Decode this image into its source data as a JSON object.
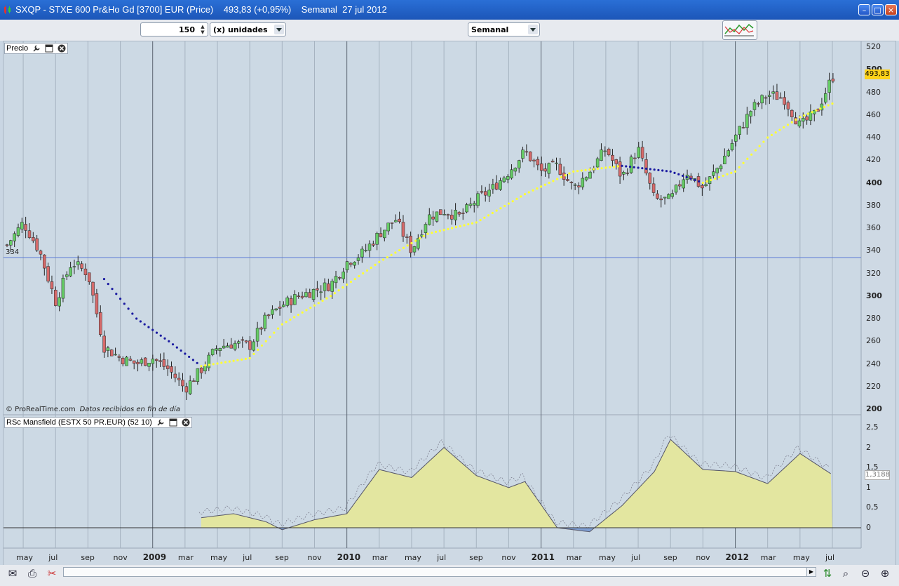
{
  "window": {
    "title": "SXQP - STXE 600 Pr&Ho Gd [3700] EUR (Price)    493,83 (+0,95%)    Semanal  27 jul 2012"
  },
  "toolbar": {
    "units_value": "150",
    "units_label": "(x) unidades",
    "period_label": "Semanal"
  },
  "price_panel": {
    "label": "Precio",
    "last_price_tag": "493,83",
    "hline_label": "334",
    "copyright": "© ProRealTime.com",
    "data_note": "Datos recibidos en fin de día",
    "y_ticks": [
      "520",
      "500",
      "480",
      "460",
      "440",
      "420",
      "400",
      "380",
      "360",
      "340",
      "320",
      "300",
      "280",
      "260",
      "240",
      "220",
      "200"
    ],
    "y_ticks_bold": [
      "500",
      "400",
      "300",
      "200"
    ]
  },
  "indicator_panel": {
    "label": "RSc Mansfield (ESTX 50 PR.EUR) (52 10)",
    "value_tag": "1,3188",
    "y_ticks": [
      "2,5",
      "2",
      "1,5",
      "1",
      "0,5",
      "0"
    ]
  },
  "x_axis": {
    "labels": [
      "may",
      "jul",
      "sep",
      "nov",
      "2009",
      "mar",
      "may",
      "jul",
      "sep",
      "nov",
      "2010",
      "mar",
      "may",
      "jul",
      "sep",
      "nov",
      "2011",
      "mar",
      "may",
      "jul",
      "sep",
      "nov",
      "2012",
      "mar",
      "may",
      "jul"
    ],
    "bold_labels": [
      "2009",
      "2010",
      "2011",
      "2012"
    ]
  },
  "colors": {
    "up_candle": "#66cc66",
    "down_candle": "#d66a6a",
    "ma_rising": "#ffff33",
    "ma_falling": "#1a1aa0",
    "indicator_fill_pos": "#e3e6a0",
    "indicator_fill_neg": "#7f9fd4",
    "price_tag": "#ffd21a"
  },
  "chart_data": {
    "type": "candlestick",
    "instrument": "SXQP - STXE 600 Pr&Ho Gd [3700] EUR (Price)",
    "timeframe": "Semanal",
    "last_date": "27 jul 2012",
    "last_value": 493.83,
    "change_pct": "+0,95%",
    "horizontal_line": 334,
    "ylim": [
      200,
      520
    ],
    "price_path": [
      {
        "date": "2008-04",
        "value": 345
      },
      {
        "date": "2008-05",
        "value": 365
      },
      {
        "date": "2008-06",
        "value": 340
      },
      {
        "date": "2008-07",
        "value": 295
      },
      {
        "date": "2008-08",
        "value": 330
      },
      {
        "date": "2008-09",
        "value": 320
      },
      {
        "date": "2008-10",
        "value": 255
      },
      {
        "date": "2008-11",
        "value": 245
      },
      {
        "date": "2008-12",
        "value": 240
      },
      {
        "date": "2009-01",
        "value": 245
      },
      {
        "date": "2009-02",
        "value": 235
      },
      {
        "date": "2009-03",
        "value": 218
      },
      {
        "date": "2009-04",
        "value": 235
      },
      {
        "date": "2009-05",
        "value": 255
      },
      {
        "date": "2009-06",
        "value": 258
      },
      {
        "date": "2009-07",
        "value": 256
      },
      {
        "date": "2009-08",
        "value": 280
      },
      {
        "date": "2009-09",
        "value": 292
      },
      {
        "date": "2009-10",
        "value": 300
      },
      {
        "date": "2009-11",
        "value": 305
      },
      {
        "date": "2009-12",
        "value": 310
      },
      {
        "date": "2010-01",
        "value": 330
      },
      {
        "date": "2010-02",
        "value": 338
      },
      {
        "date": "2010-03",
        "value": 355
      },
      {
        "date": "2010-04",
        "value": 368
      },
      {
        "date": "2010-05",
        "value": 340
      },
      {
        "date": "2010-06",
        "value": 370
      },
      {
        "date": "2010-07",
        "value": 375
      },
      {
        "date": "2010-08",
        "value": 370
      },
      {
        "date": "2010-09",
        "value": 385
      },
      {
        "date": "2010-10",
        "value": 395
      },
      {
        "date": "2010-11",
        "value": 410
      },
      {
        "date": "2010-12",
        "value": 428
      },
      {
        "date": "2011-01",
        "value": 410
      },
      {
        "date": "2011-02",
        "value": 415
      },
      {
        "date": "2011-03",
        "value": 395
      },
      {
        "date": "2011-04",
        "value": 410
      },
      {
        "date": "2011-05",
        "value": 430
      },
      {
        "date": "2011-06",
        "value": 405
      },
      {
        "date": "2011-07",
        "value": 430
      },
      {
        "date": "2011-08",
        "value": 385
      },
      {
        "date": "2011-09",
        "value": 385
      },
      {
        "date": "2011-10",
        "value": 410
      },
      {
        "date": "2011-11",
        "value": 395
      },
      {
        "date": "2011-12",
        "value": 415
      },
      {
        "date": "2012-01",
        "value": 440
      },
      {
        "date": "2012-02",
        "value": 465
      },
      {
        "date": "2012-03",
        "value": 478
      },
      {
        "date": "2012-04",
        "value": 475
      },
      {
        "date": "2012-05",
        "value": 450
      },
      {
        "date": "2012-06",
        "value": 462
      },
      {
        "date": "2012-07",
        "value": 493.83
      }
    ],
    "moving_average": [
      {
        "date": "2008-10",
        "value": 315
      },
      {
        "date": "2008-12",
        "value": 280
      },
      {
        "date": "2009-02",
        "value": 260
      },
      {
        "date": "2009-04",
        "value": 238
      },
      {
        "date": "2009-07",
        "value": 245
      },
      {
        "date": "2009-09",
        "value": 275
      },
      {
        "date": "2009-12",
        "value": 300
      },
      {
        "date": "2010-03",
        "value": 330
      },
      {
        "date": "2010-06",
        "value": 355
      },
      {
        "date": "2010-09",
        "value": 365
      },
      {
        "date": "2010-12",
        "value": 390
      },
      {
        "date": "2011-03",
        "value": 410
      },
      {
        "date": "2011-06",
        "value": 415
      },
      {
        "date": "2011-09",
        "value": 410
      },
      {
        "date": "2011-11",
        "value": 400
      },
      {
        "date": "2012-01",
        "value": 410
      },
      {
        "date": "2012-03",
        "value": 440
      },
      {
        "date": "2012-05",
        "value": 458
      },
      {
        "date": "2012-07",
        "value": 470
      }
    ],
    "indicator": {
      "name": "RSc Mansfield (ESTX 50 PR.EUR) (52 10)",
      "last_value": 1.3188,
      "ylim": [
        -0.3,
        2.6
      ],
      "values": [
        {
          "date": "2009-04",
          "value": 0.25
        },
        {
          "date": "2009-06",
          "value": 0.35
        },
        {
          "date": "2009-08",
          "value": 0.15
        },
        {
          "date": "2009-09",
          "value": -0.05
        },
        {
          "date": "2009-11",
          "value": 0.2
        },
        {
          "date": "2010-01",
          "value": 0.35
        },
        {
          "date": "2010-03",
          "value": 1.45
        },
        {
          "date": "2010-05",
          "value": 1.25
        },
        {
          "date": "2010-07",
          "value": 2.0
        },
        {
          "date": "2010-09",
          "value": 1.3
        },
        {
          "date": "2010-11",
          "value": 1.0
        },
        {
          "date": "2010-12",
          "value": 1.15
        },
        {
          "date": "2011-02",
          "value": 0.0
        },
        {
          "date": "2011-04",
          "value": -0.1
        },
        {
          "date": "2011-06",
          "value": 0.55
        },
        {
          "date": "2011-08",
          "value": 1.4
        },
        {
          "date": "2011-09",
          "value": 2.2
        },
        {
          "date": "2011-11",
          "value": 1.45
        },
        {
          "date": "2012-01",
          "value": 1.4
        },
        {
          "date": "2012-03",
          "value": 1.1
        },
        {
          "date": "2012-05",
          "value": 1.85
        },
        {
          "date": "2012-07",
          "value": 1.32
        }
      ]
    }
  }
}
